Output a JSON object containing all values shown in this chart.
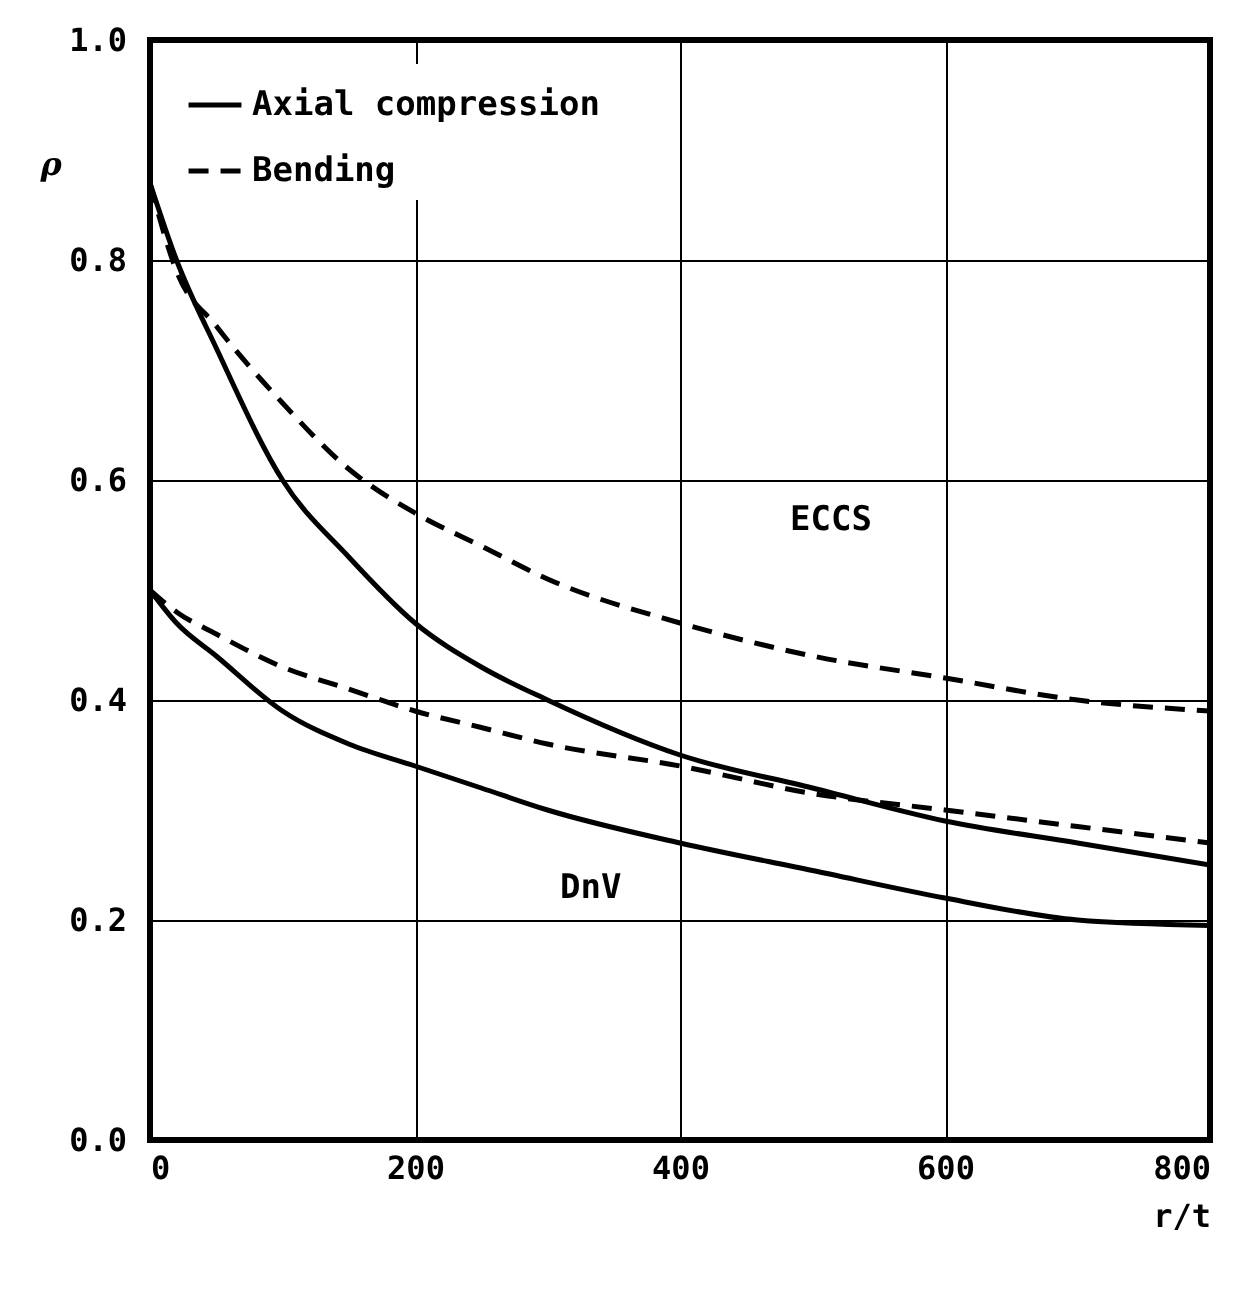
{
  "chart_data": {
    "type": "line",
    "xlabel": "r/t",
    "ylabel": "ρ",
    "x": [
      0,
      20,
      50,
      100,
      150,
      200,
      250,
      300,
      400,
      500,
      600,
      700,
      800
    ],
    "series": [
      {
        "name": "Axial compression",
        "color": "#000000",
        "line_style": "solid",
        "values": [
          0.87,
          0.8,
          0.72,
          0.6,
          0.53,
          0.47,
          0.43,
          0.4,
          0.35,
          0.32,
          0.29,
          0.27,
          0.25
        ]
      },
      {
        "name": "Bending",
        "color": "#000000",
        "line_style": "dashed",
        "values": [
          0.87,
          0.79,
          0.74,
          0.67,
          0.61,
          0.57,
          0.54,
          0.51,
          0.47,
          0.44,
          0.42,
          0.4,
          0.39
        ]
      },
      {
        "color": "#000000",
        "line_style": "solid",
        "values": [
          0.5,
          0.47,
          0.44,
          0.39,
          0.36,
          0.34,
          0.32,
          0.3,
          0.27,
          0.245,
          0.22,
          0.2,
          0.195
        ]
      },
      {
        "color": "#000000",
        "line_style": "dashed",
        "values": [
          0.5,
          0.48,
          0.46,
          0.43,
          0.41,
          0.39,
          0.375,
          0.36,
          0.34,
          0.315,
          0.3,
          0.285,
          0.27
        ]
      }
    ],
    "xlim": [
      0,
      800
    ],
    "xticks": [
      0,
      200,
      400,
      600,
      800
    ],
    "ylim": [
      0,
      1.0
    ],
    "yticks": [
      {
        "value": 0,
        "label": "0.0"
      },
      0.2,
      0.4,
      0.6,
      0.8,
      {
        "value": 1.0,
        "label": "1.0"
      }
    ],
    "grid": true,
    "legend": "top left",
    "annotations": [
      "ECCS",
      "DnV"
    ]
  }
}
